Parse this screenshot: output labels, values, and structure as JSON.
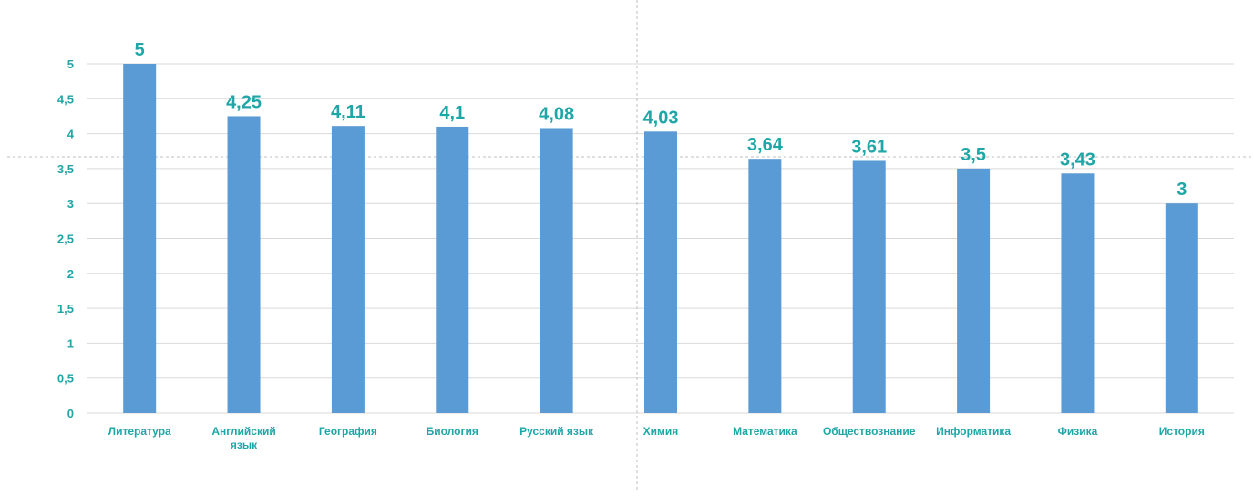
{
  "chart_data": {
    "type": "bar",
    "title": "",
    "xlabel": "",
    "ylabel": "",
    "categories": [
      "Литература",
      "Английский язык",
      "География",
      "Биология",
      "Русский язык",
      "Химия",
      "Математика",
      "Обществознание",
      "Информатика",
      "Физика",
      "История"
    ],
    "values": [
      5,
      4.25,
      4.11,
      4.1,
      4.08,
      4.03,
      3.64,
      3.61,
      3.5,
      3.43,
      3
    ],
    "value_labels": [
      "5",
      "4,25",
      "4,11",
      "4,1",
      "4,08",
      "4,03",
      "3,64",
      "3,61",
      "3,5",
      "3,43",
      "3"
    ],
    "ylim": [
      0,
      5
    ],
    "y_ticks": [
      "0",
      "0,5",
      "1",
      "1,5",
      "2",
      "2,5",
      "3",
      "3,5",
      "4",
      "4,5",
      "5"
    ],
    "grid": true,
    "legend": "none",
    "colors": {
      "bar": "#5b9bd5",
      "label": "#1fa6a7",
      "grid": "#d9d9d9",
      "guide": "#bfbfbf"
    }
  }
}
